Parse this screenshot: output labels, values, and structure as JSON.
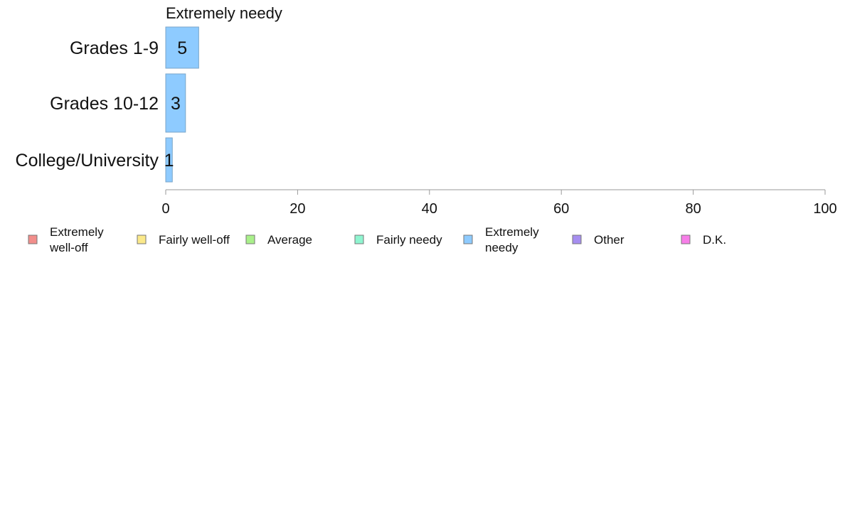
{
  "chart_data": {
    "type": "bar",
    "orientation": "horizontal",
    "title": "Extremely needy",
    "categories": [
      "Grades 1-9",
      "Grades 10-12",
      "College/University"
    ],
    "series": [
      {
        "name": "Extremely needy",
        "color": "#8ecbff",
        "values": [
          5,
          3,
          1
        ]
      }
    ],
    "xlim": [
      0,
      100
    ],
    "x_ticks": [
      0,
      20,
      40,
      60,
      80,
      100
    ],
    "grid": false,
    "legend_position": "bottom",
    "legend": [
      {
        "label_lines": [
          "Extremely",
          "well-off"
        ],
        "color": "#f28e8b"
      },
      {
        "label_lines": [
          "Fairly well-off"
        ],
        "color": "#fbe98a"
      },
      {
        "label_lines": [
          "Average"
        ],
        "color": "#a9f08a"
      },
      {
        "label_lines": [
          "Fairly needy"
        ],
        "color": "#8ff5d0"
      },
      {
        "label_lines": [
          "Extremely",
          "needy"
        ],
        "color": "#8ecbff"
      },
      {
        "label_lines": [
          "Other"
        ],
        "color": "#a68ef0"
      },
      {
        "label_lines": [
          "D.K."
        ],
        "color": "#f77ee8"
      }
    ]
  }
}
